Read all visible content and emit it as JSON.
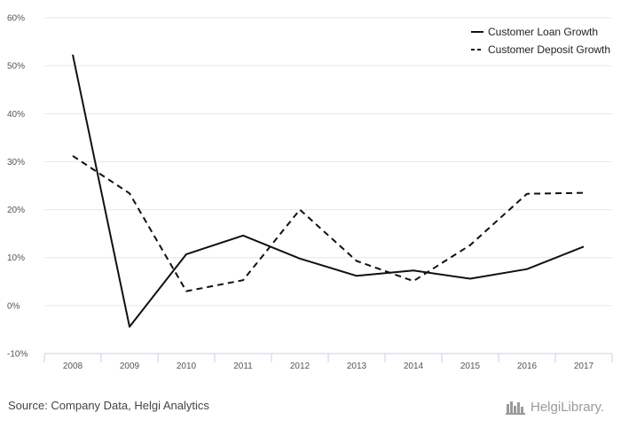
{
  "chart_data": {
    "type": "line",
    "categories": [
      "2008",
      "2009",
      "2010",
      "2011",
      "2012",
      "2013",
      "2014",
      "2015",
      "2016",
      "2017"
    ],
    "series": [
      {
        "name": "Customer Loan Growth",
        "style": "solid",
        "color": "#111111",
        "values": [
          52.3,
          -4.4,
          10.7,
          14.6,
          9.8,
          6.2,
          7.3,
          5.6,
          7.6,
          12.3
        ]
      },
      {
        "name": "Customer Deposit Growth",
        "style": "dashed",
        "color": "#111111",
        "values": [
          31.2,
          23.4,
          3.0,
          5.3,
          20.0,
          9.3,
          5.1,
          12.6,
          23.3,
          23.5
        ]
      }
    ],
    "y_ticks": [
      60,
      50,
      40,
      30,
      20,
      10,
      0,
      -10
    ],
    "y_tick_labels": [
      "60%",
      "50%",
      "40%",
      "30%",
      "20%",
      "10%",
      "0%",
      "-10%"
    ],
    "ylim": [
      -10,
      60
    ],
    "grid": true,
    "legend_position": "top-right"
  },
  "footer": {
    "source": "Source: Company Data, Helgi Analytics",
    "logo_text": "HelgiLibrary."
  }
}
